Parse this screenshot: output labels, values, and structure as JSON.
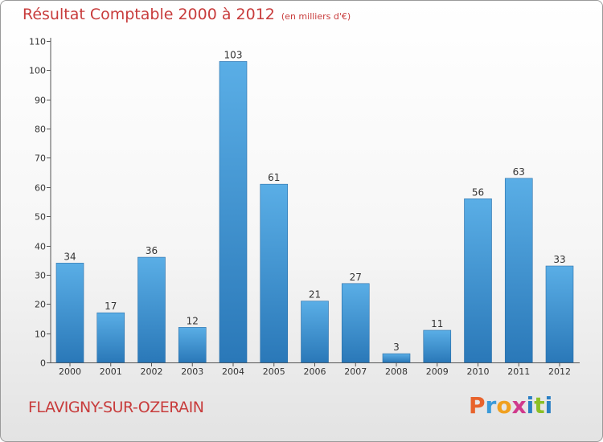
{
  "header": {
    "title": "Résultat Comptable 2000 à 2012",
    "subtitle": "(en milliers d'€)"
  },
  "footer": {
    "commune": "FLAVIGNY-SUR-OZERAIN",
    "brand_letters": [
      "P",
      "r",
      "o",
      "x",
      "i",
      "t",
      "i"
    ],
    "brand_colors": [
      "#e8632c",
      "#3a9ad9",
      "#f0a020",
      "#d03a8c",
      "#2a7fc4",
      "#8cbf26",
      "#2a7fc4"
    ]
  },
  "chart_data": {
    "type": "bar",
    "categories": [
      "2000",
      "2001",
      "2002",
      "2003",
      "2004",
      "2005",
      "2006",
      "2007",
      "2008",
      "2009",
      "2010",
      "2011",
      "2012"
    ],
    "values": [
      34,
      17,
      36,
      12,
      103,
      61,
      21,
      27,
      3,
      11,
      56,
      63,
      33
    ],
    "ylim": [
      0,
      110
    ],
    "yticks": [
      0,
      10,
      20,
      30,
      40,
      50,
      60,
      70,
      80,
      90,
      100,
      110
    ],
    "grid": false,
    "bar_color": "#3d95d6"
  }
}
